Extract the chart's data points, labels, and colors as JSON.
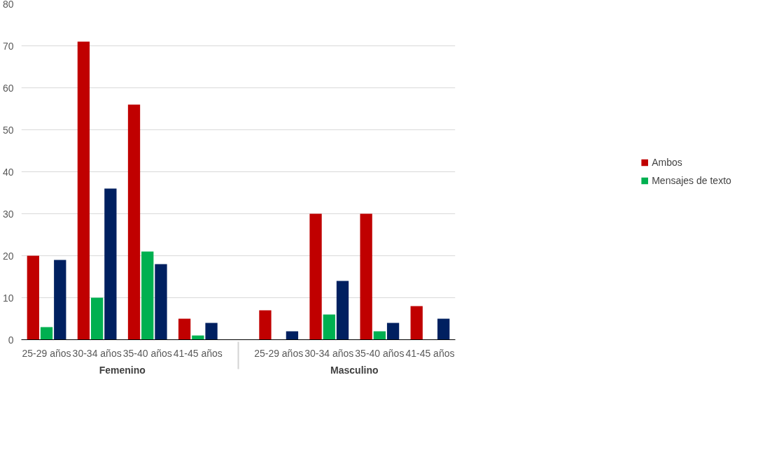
{
  "chart_data": {
    "type": "bar",
    "categories": [
      "25-29 años",
      "30-34 años",
      "35-40 años",
      "41-45 años",
      "25-29 años",
      "30-34 años",
      "35-40 años",
      "41-45 años"
    ],
    "annotations": [
      "Femenino",
      "Masculino"
    ],
    "series": [
      {
        "name": "Ambos",
        "color": "#c00000",
        "values": [
          20,
          71,
          56,
          5,
          7,
          30,
          30,
          8
        ]
      },
      {
        "name": "Mensajes de texto",
        "color": "#00b050",
        "values": [
          3,
          10,
          21,
          1,
          0,
          6,
          2,
          0
        ]
      },
      {
        "color": "#002060",
        "values": [
          19,
          36,
          18,
          4,
          2,
          14,
          4,
          5
        ]
      }
    ],
    "ylim": [
      0,
      80
    ],
    "yticks": [
      0,
      10,
      20,
      30,
      40,
      50,
      60,
      70,
      80
    ],
    "grid": "y",
    "legend": "right"
  }
}
